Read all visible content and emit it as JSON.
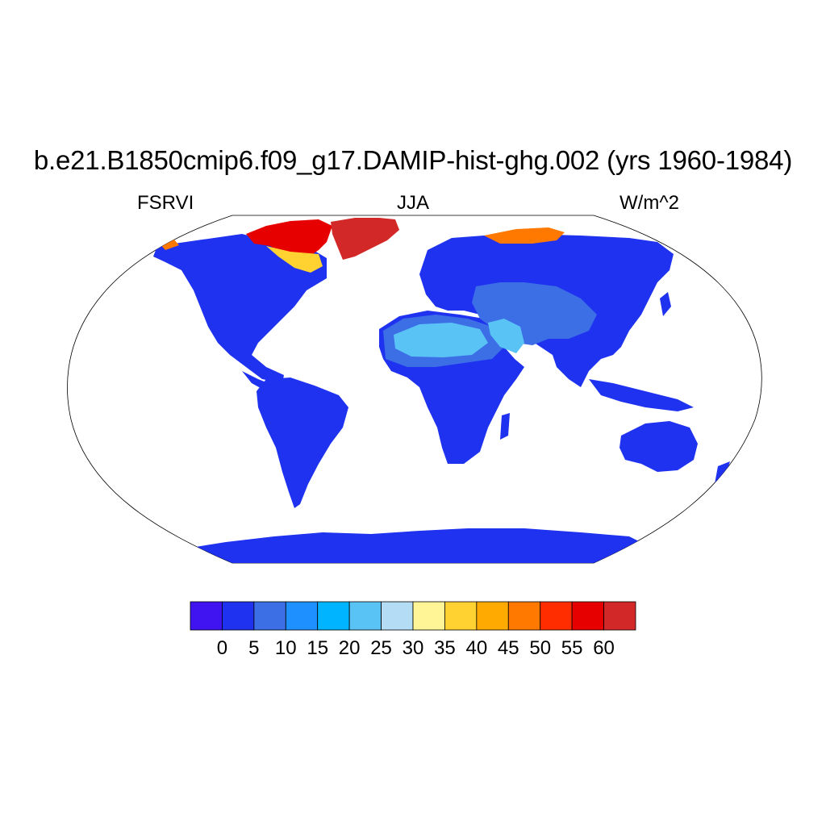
{
  "figure": {
    "title": "b.e21.B1850cmip6.f09_g17.DAMIP-hist-ghg.002 (yrs 1960-1984)",
    "left_label": "FSRVI",
    "center_label": "JJA",
    "right_label": "W/m^2"
  },
  "colorbar": {
    "colors": [
      "#4014F0",
      "#1E32F0",
      "#3C6EE6",
      "#1E90FF",
      "#00B4FF",
      "#5AC3F5",
      "#B4DCF5",
      "#FFF596",
      "#FFD232",
      "#FFAA00",
      "#FF7800",
      "#FF2D00",
      "#E60000",
      "#D22828"
    ],
    "labels": [
      "0",
      "5",
      "10",
      "15",
      "20",
      "25",
      "30",
      "35",
      "40",
      "45",
      "50",
      "55",
      "60"
    ]
  },
  "map": {
    "projection": "Robinson",
    "land_base_color": "#1E32F0",
    "ocean_color": "#ffffff",
    "regions": [
      {
        "name": "arid-north-africa-arabia",
        "color": "#3C6EE6"
      },
      {
        "name": "sahara-core",
        "color": "#5AC3F5"
      },
      {
        "name": "greenland",
        "color": "#D22828"
      },
      {
        "name": "canadian-arctic",
        "color": "#E60000"
      },
      {
        "name": "siberian-arctic",
        "color": "#FF7800"
      }
    ]
  }
}
